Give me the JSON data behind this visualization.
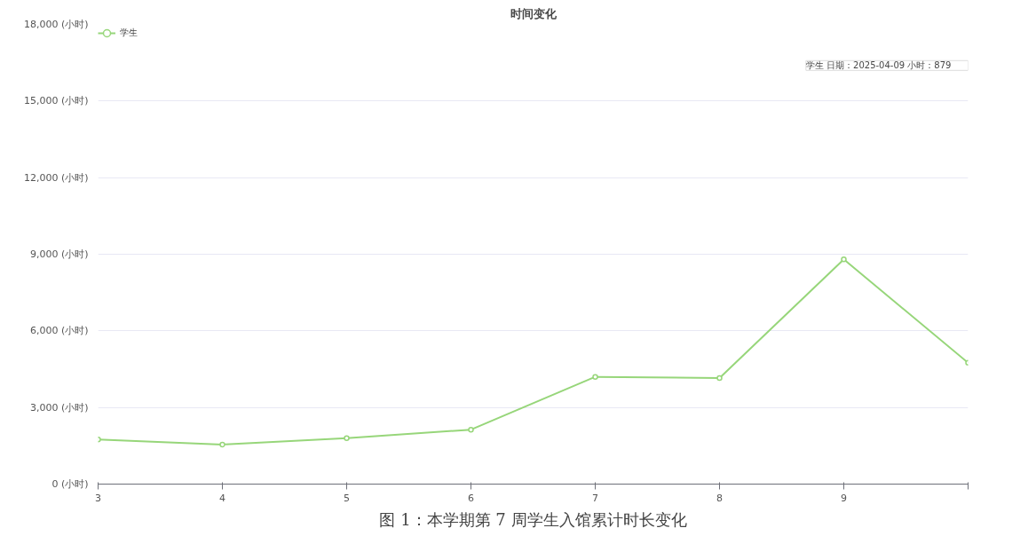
{
  "chart_data": {
    "type": "line",
    "title": "时间变化",
    "categories": [
      "3",
      "4",
      "5",
      "6",
      "7",
      "8",
      "9",
      null
    ],
    "series": [
      {
        "name": "学生",
        "color": "#97d67a",
        "values": [
          1750,
          1550,
          1800,
          2130,
          4200,
          4150,
          8800,
          4750
        ]
      }
    ],
    "ylim": [
      0,
      18000
    ],
    "yticks": [
      {
        "value": 0,
        "label": "0 (小时)"
      },
      {
        "value": 3000,
        "label": "3,000 (小时)"
      },
      {
        "value": 6000,
        "label": "6,000 (小时)"
      },
      {
        "value": 9000,
        "label": "9,000 (小时)"
      },
      {
        "value": 12000,
        "label": "12,000 (小时)"
      },
      {
        "value": 15000,
        "label": "15,000 (小时)"
      },
      {
        "value": 18000,
        "label": "18,000 (小时)"
      }
    ],
    "grid": "y",
    "legend": "top left",
    "marker": "circle",
    "line_style": "solid",
    "annotations": [
      "学生    日期：2025-04-09    小时：879",
      "图 1：本学期第 7 周学生入馆累计时长变化"
    ]
  }
}
